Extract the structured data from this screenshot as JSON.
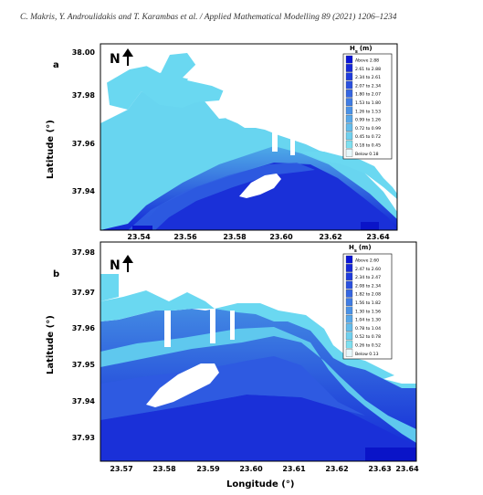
{
  "page": {
    "header": "C. Makris, Y. Androulidakis and T. Karambas et al. / Applied Mathematical Modelling 89 (2021) 1206–1234"
  },
  "figure": {
    "panels": [
      {
        "letter": "a",
        "north_label": "N",
        "legend_title_main": "H",
        "legend_title_sub": "s",
        "legend_title_unit": "(m)",
        "legend_items": [
          "Above 2.88",
          "2.61 to 2.88",
          "2.34 to 2.61",
          "2.07 to 2.34",
          "1.80 to 2.07",
          "1.53 to 1.80",
          "1.26 to 1.53",
          "0.99 to 1.26",
          "0.72 to 0.99",
          "0.45 to 0.72",
          "0.18 to 0.45",
          "Below 0.18"
        ],
        "legend_colors": [
          "#0a14d8",
          "#1528da",
          "#1f3cdd",
          "#2a50e0",
          "#3566e2",
          "#407ce5",
          "#4b92e7",
          "#58a8ea",
          "#64bdec",
          "#70d0ee",
          "#7ee0f0",
          "#e8f8fb"
        ]
      },
      {
        "letter": "b",
        "north_label": "N",
        "legend_title_main": "H",
        "legend_title_sub": "s",
        "legend_title_unit": "(m)",
        "legend_items": [
          "Above 2.60",
          "2.47 to 2.60",
          "2.34 to 2.47",
          "2.08 to 2.34",
          "1.82 to 2.08",
          "1.56 to 1.82",
          "1.30 to 1.56",
          "1.04 to 1.30",
          "0.78 to 1.04",
          "0.52 to 0.78",
          "0.26 to 0.52",
          "Below 0.13"
        ],
        "legend_colors": [
          "#0a14d8",
          "#1528da",
          "#1f3cdd",
          "#2a50e0",
          "#3566e2",
          "#407ce5",
          "#4b92e7",
          "#58a8ea",
          "#64bdec",
          "#70d0ee",
          "#7ee0f0",
          "#e8f8fb"
        ]
      }
    ],
    "ylabel": "Latitude (°)",
    "xlabel": "Longitude (°)"
  },
  "chart_data": [
    {
      "type": "heatmap",
      "title": "",
      "ylabel": "Latitude (°)",
      "xlabel": "",
      "x_ticks": [
        "23.54",
        "23.56",
        "23.58",
        "23.60",
        "23.62",
        "23.64"
      ],
      "y_ticks": [
        "38.00",
        "37.98",
        "37.96",
        "37.94"
      ],
      "legend_placement": "top-right"
    },
    {
      "type": "heatmap",
      "title": "",
      "ylabel": "Latitude (°)",
      "xlabel": "Longitude (°)",
      "x_ticks": [
        "23.57",
        "23.58",
        "23.59",
        "23.60",
        "23.61",
        "23.62",
        "23.63",
        "23.64"
      ],
      "y_ticks": [
        "37.98",
        "37.97",
        "37.96",
        "37.95",
        "37.94",
        "37.93"
      ],
      "legend_placement": "top-right"
    }
  ]
}
